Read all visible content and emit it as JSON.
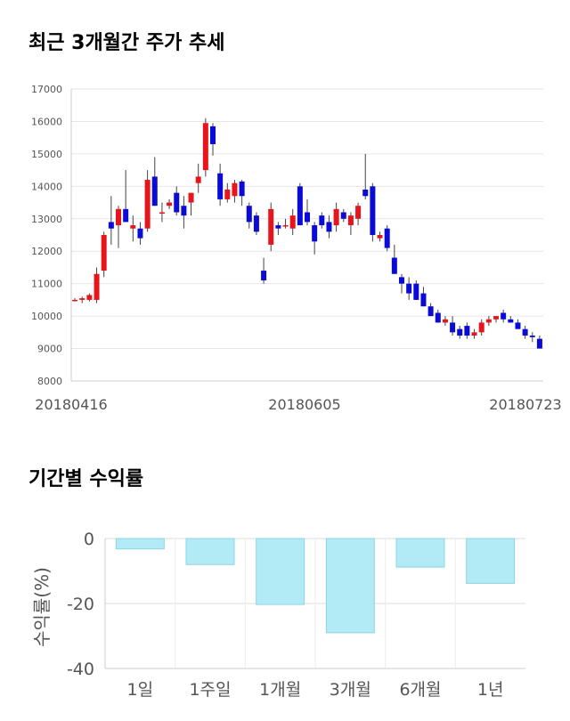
{
  "page": {
    "title_price": "최근 3개월간 주가 추세",
    "title_returns": "기간별 수익률"
  },
  "chart_data": [
    {
      "type": "candlestick",
      "title": "최근 3개월간 주가 추세",
      "ylim": [
        8000,
        17000
      ],
      "y_ticks": [
        8000,
        9000,
        10000,
        11000,
        12000,
        13000,
        14000,
        15000,
        16000,
        17000
      ],
      "x_ticks": [
        "20180416",
        "20180605",
        "20180723"
      ],
      "grid": true,
      "colors": {
        "up": "#e8141b",
        "down": "#0b0bd8"
      },
      "candles": [
        [
          10500,
          10550,
          10450,
          10500
        ],
        [
          10500,
          10600,
          10400,
          10550
        ],
        [
          10500,
          10700,
          10450,
          10650
        ],
        [
          10500,
          11500,
          10400,
          11300
        ],
        [
          11400,
          12600,
          11200,
          12500
        ],
        [
          12900,
          13700,
          12200,
          12700
        ],
        [
          12800,
          13400,
          12100,
          13300
        ],
        [
          13300,
          14500,
          12900,
          12900
        ],
        [
          12700,
          13100,
          12300,
          12800
        ],
        [
          12700,
          12900,
          12200,
          12400
        ],
        [
          12700,
          14500,
          12600,
          14200
        ],
        [
          14300,
          14900,
          13400,
          13400
        ],
        [
          13200,
          13500,
          12900,
          13200
        ],
        [
          13400,
          13600,
          13300,
          13500
        ],
        [
          13800,
          14000,
          13100,
          13200
        ],
        [
          13400,
          13700,
          12700,
          13100
        ],
        [
          13500,
          13800,
          13100,
          13800
        ],
        [
          14100,
          14700,
          13800,
          14300
        ],
        [
          14500,
          16100,
          14300,
          15950
        ],
        [
          15850,
          15950,
          14950,
          15300
        ],
        [
          14400,
          14700,
          13400,
          13600
        ],
        [
          13600,
          14100,
          13500,
          13900
        ],
        [
          13700,
          14200,
          13500,
          14100
        ],
        [
          14150,
          14200,
          13400,
          13700
        ],
        [
          13400,
          13500,
          12700,
          12900
        ],
        [
          13100,
          13200,
          12500,
          12600
        ],
        [
          11400,
          11800,
          11000,
          11100
        ],
        [
          12200,
          13500,
          12000,
          13300
        ],
        [
          12800,
          12900,
          12500,
          12700
        ],
        [
          12800,
          13000,
          12700,
          12800
        ],
        [
          12700,
          13300,
          12500,
          13100
        ],
        [
          14000,
          14100,
          12800,
          12800
        ],
        [
          13200,
          13600,
          12800,
          12900
        ],
        [
          12800,
          12900,
          11900,
          12300
        ],
        [
          13100,
          13200,
          12700,
          12800
        ],
        [
          12900,
          13100,
          12400,
          12600
        ],
        [
          12800,
          13500,
          12600,
          13300
        ],
        [
          13200,
          13300,
          12900,
          13000
        ],
        [
          12800,
          13200,
          12500,
          13100
        ],
        [
          13000,
          13500,
          12800,
          13400
        ],
        [
          13900,
          15000,
          13600,
          13700
        ],
        [
          14000,
          14100,
          12300,
          12500
        ],
        [
          12400,
          12600,
          12300,
          12500
        ],
        [
          12700,
          12800,
          12000,
          12100
        ],
        [
          11800,
          12200,
          11300,
          11300
        ],
        [
          11200,
          11300,
          10700,
          11000
        ],
        [
          11000,
          11200,
          10500,
          10700
        ],
        [
          11000,
          11100,
          10500,
          10500
        ],
        [
          10700,
          10900,
          10300,
          10300
        ],
        [
          10300,
          10400,
          10000,
          10000
        ],
        [
          10100,
          10200,
          9800,
          9800
        ],
        [
          9800,
          10000,
          9700,
          9900
        ],
        [
          9800,
          10000,
          9400,
          9500
        ],
        [
          9600,
          9700,
          9300,
          9400
        ],
        [
          9700,
          9800,
          9300,
          9400
        ],
        [
          9400,
          9600,
          9300,
          9500
        ],
        [
          9500,
          9900,
          9400,
          9800
        ],
        [
          9800,
          10000,
          9700,
          9900
        ],
        [
          9900,
          10000,
          9800,
          10000
        ],
        [
          10100,
          10200,
          9800,
          9900
        ],
        [
          9900,
          10000,
          9800,
          9800
        ],
        [
          9800,
          9900,
          9600,
          9600
        ],
        [
          9600,
          9700,
          9300,
          9400
        ],
        [
          9400,
          9500,
          9200,
          9350
        ],
        [
          9300,
          9400,
          9000,
          9000
        ]
      ]
    },
    {
      "type": "bar",
      "title": "기간별 수익률",
      "ylabel": "수익률(%)",
      "categories": [
        "1일",
        "1주일",
        "1개월",
        "3개월",
        "6개월",
        "1년"
      ],
      "values": [
        -3.2,
        -8.0,
        -20.3,
        -29.0,
        -8.8,
        -13.8
      ],
      "ylim": [
        -40,
        0
      ],
      "y_ticks": [
        0,
        -20,
        -40
      ],
      "grid": true,
      "colors": {
        "bar": "#b2ebf5",
        "bar_edge": "#8fd3e2"
      }
    }
  ]
}
